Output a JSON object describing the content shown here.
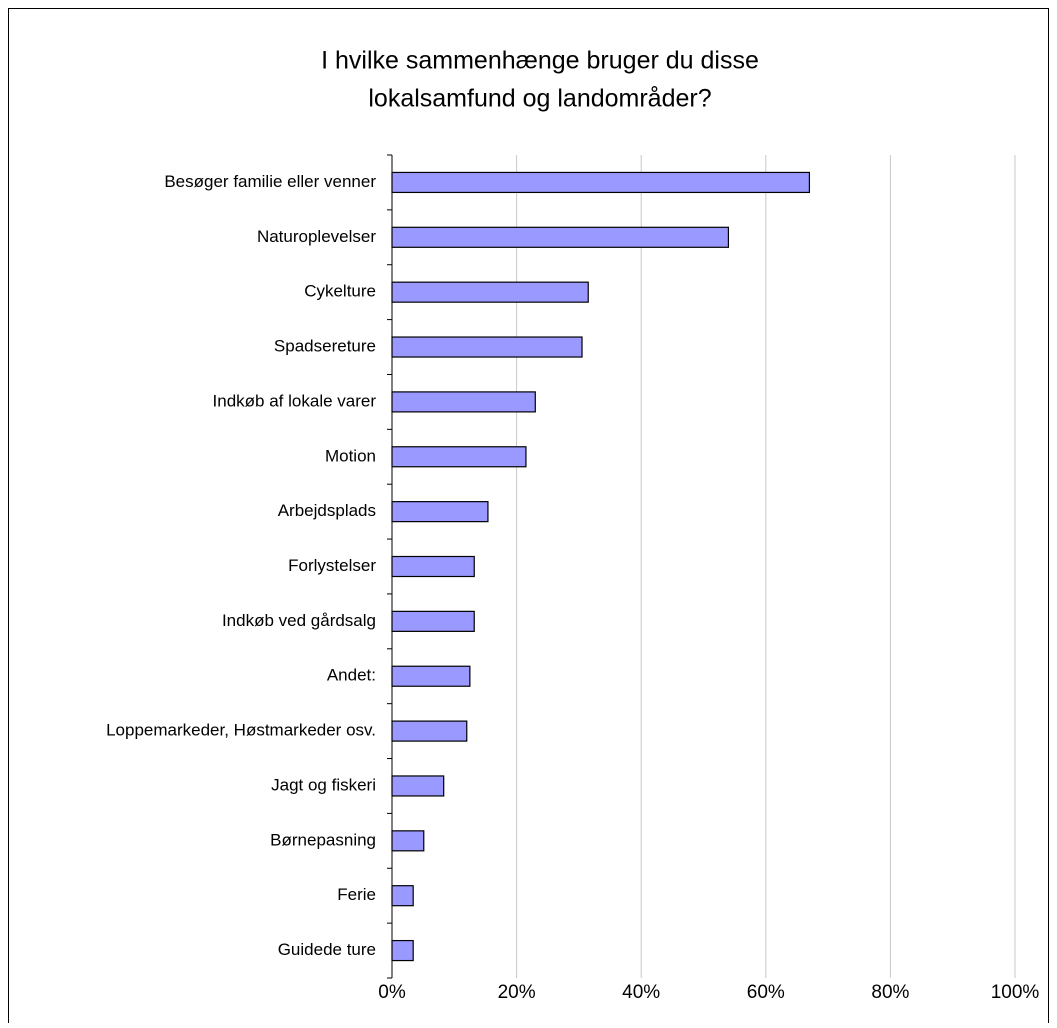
{
  "chart_data": {
    "type": "barh",
    "title": [
      "I hvilke sammenhænge bruger du disse",
      "lokalsamfund og landområder?"
    ],
    "categories": [
      "Besøger familie eller venner",
      "Naturoplevelser",
      "Cykelture",
      "Spadsereture",
      "Indkøb af lokale varer",
      "Motion",
      "Arbejdsplads",
      "Forlystelser",
      "Indkøb ved gårdsalg",
      "Andet:",
      "Loppemarkeder, Høstmarkeder osv.",
      "Jagt og fiskeri",
      "Børnepasning",
      "Ferie",
      "Guidede ture"
    ],
    "values": [
      67,
      54,
      31.5,
      30.5,
      23,
      21.5,
      15.4,
      13.2,
      13.2,
      12.5,
      12,
      8.3,
      5.1,
      3.4,
      3.4
    ],
    "color": "#9999ff",
    "xlim": [
      0,
      100
    ],
    "xticks": [
      {
        "value": 0,
        "label": "0%"
      },
      {
        "value": 20,
        "label": "20%"
      },
      {
        "value": 40,
        "label": "40%"
      },
      {
        "value": 60,
        "label": "60%"
      },
      {
        "value": 80,
        "label": "80%"
      },
      {
        "value": 100,
        "label": "100%"
      }
    ],
    "grid": true
  }
}
